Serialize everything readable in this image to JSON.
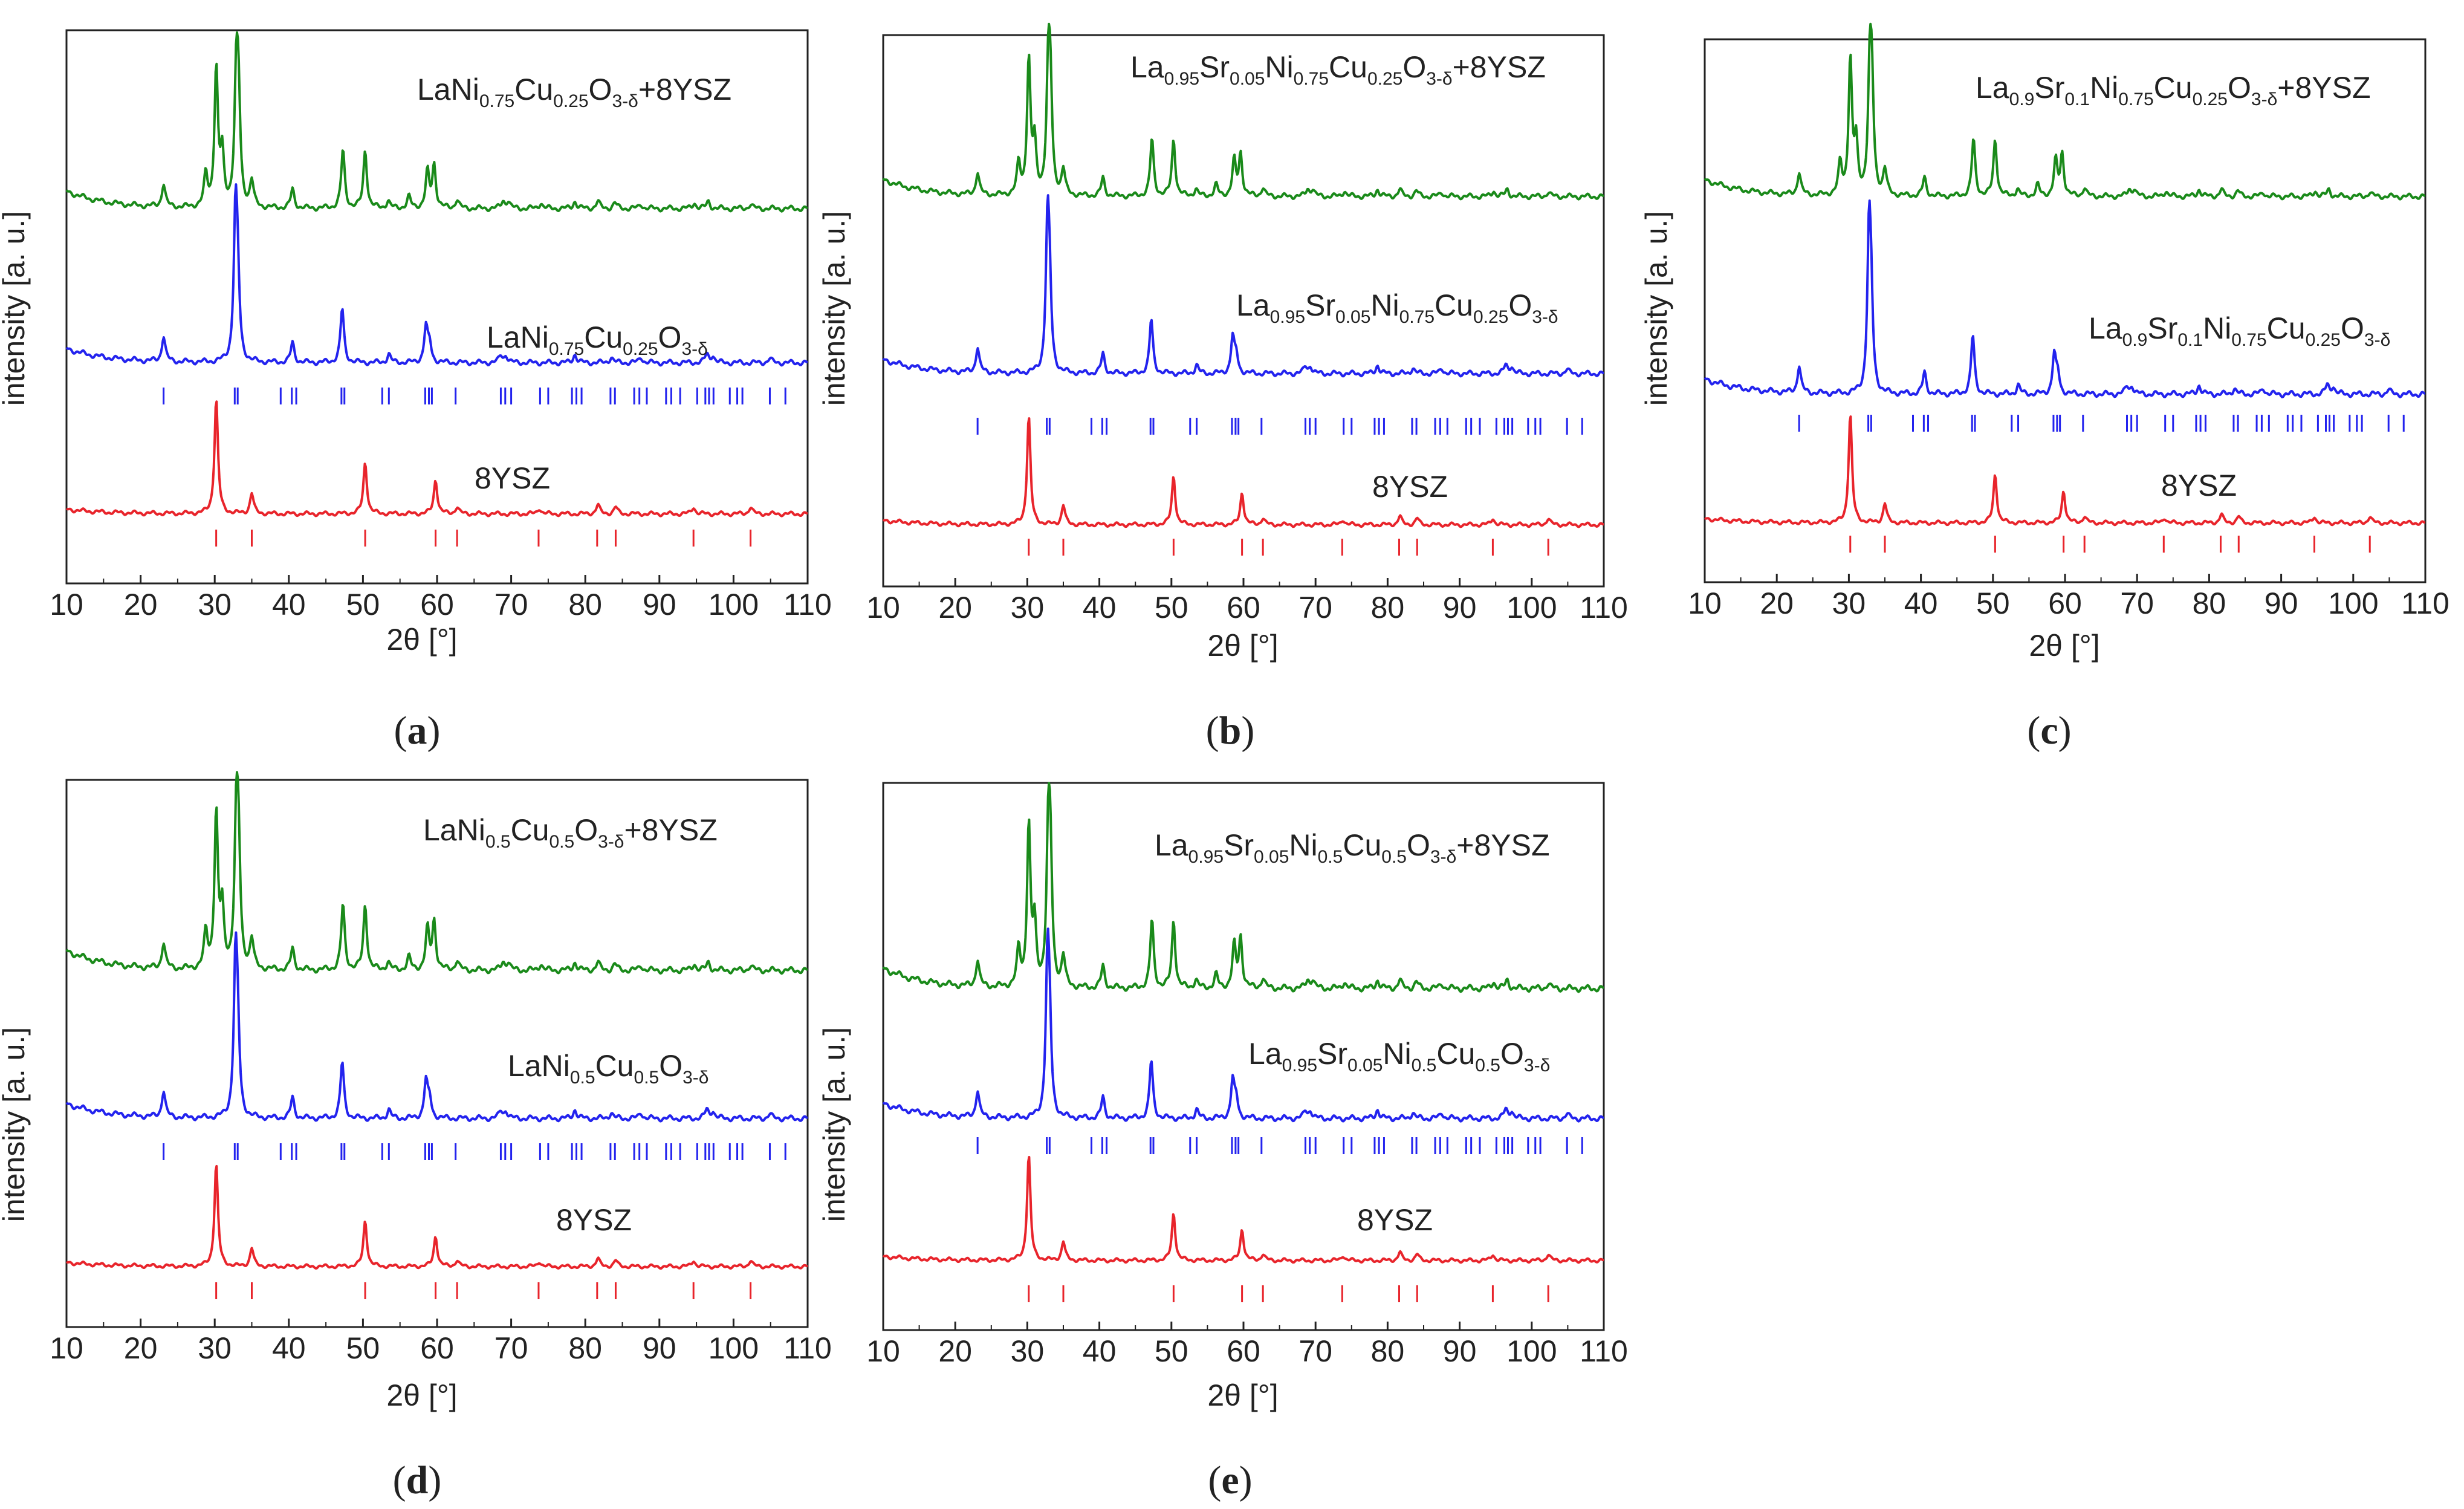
{
  "colors": {
    "composite": "#1a8a1a",
    "phase": "#2323ee",
    "ysz": "#e8242b",
    "axis": "#222222"
  },
  "chart_data": [
    {
      "type": "line",
      "panel_label": "(a)",
      "panel_letter": "a",
      "xlabel": "2θ [°]",
      "ylabel": "intensity [a. u.]",
      "xlim": [
        10,
        110
      ],
      "xticks": [
        "10",
        "20",
        "30",
        "40",
        "50",
        "60",
        "70",
        "80",
        "90",
        "100",
        "110"
      ],
      "series": [
        {
          "name": "composite",
          "label_parts": [
            [
              "LaNi",
              ""
            ],
            [
              "0.75",
              "sub"
            ],
            [
              "Cu",
              ""
            ],
            [
              "0.25",
              "sub"
            ],
            [
              "O",
              ""
            ],
            [
              "3-δ",
              "sub"
            ],
            [
              "+8YSZ",
              ""
            ]
          ]
        },
        {
          "name": "phase",
          "label_parts": [
            [
              "LaNi",
              ""
            ],
            [
              "0.75",
              "sub"
            ],
            [
              "Cu",
              ""
            ],
            [
              "0.25",
              "sub"
            ],
            [
              "O",
              ""
            ],
            [
              "3-δ",
              "sub"
            ]
          ]
        },
        {
          "name": "ysz",
          "label_parts": [
            [
              "8YSZ",
              ""
            ]
          ]
        }
      ]
    },
    {
      "type": "line",
      "panel_label": "(b)",
      "panel_letter": "b",
      "xlabel": "2θ [°]",
      "ylabel": "intensity [a. u.]",
      "xlim": [
        10,
        110
      ],
      "xticks": [
        "10",
        "20",
        "30",
        "40",
        "50",
        "60",
        "70",
        "80",
        "90",
        "100",
        "110"
      ],
      "series": [
        {
          "name": "composite",
          "label_parts": [
            [
              "La",
              ""
            ],
            [
              "0.95",
              "sub"
            ],
            [
              "Sr",
              ""
            ],
            [
              "0.05",
              "sub"
            ],
            [
              "Ni",
              ""
            ],
            [
              "0.75",
              "sub"
            ],
            [
              "Cu",
              ""
            ],
            [
              "0.25",
              "sub"
            ],
            [
              "O",
              ""
            ],
            [
              "3-δ",
              "sub"
            ],
            [
              "+8YSZ",
              ""
            ]
          ]
        },
        {
          "name": "phase",
          "label_parts": [
            [
              "La",
              ""
            ],
            [
              "0.95",
              "sub"
            ],
            [
              "Sr",
              ""
            ],
            [
              "0.05",
              "sub"
            ],
            [
              "Ni",
              ""
            ],
            [
              "0.75",
              "sub"
            ],
            [
              "Cu",
              ""
            ],
            [
              "0.25",
              "sub"
            ],
            [
              "O",
              ""
            ],
            [
              "3-δ",
              "sub"
            ]
          ]
        },
        {
          "name": "ysz",
          "label_parts": [
            [
              "8YSZ",
              ""
            ]
          ]
        }
      ]
    },
    {
      "type": "line",
      "panel_label": "(c)",
      "panel_letter": "c",
      "xlabel": "2θ [°]",
      "ylabel": "intensity [a. u.]",
      "xlim": [
        10,
        110
      ],
      "xticks": [
        "10",
        "20",
        "30",
        "40",
        "50",
        "60",
        "70",
        "80",
        "90",
        "100",
        "110"
      ],
      "series": [
        {
          "name": "composite",
          "label_parts": [
            [
              "La",
              ""
            ],
            [
              "0.9",
              "sub"
            ],
            [
              "Sr",
              ""
            ],
            [
              "0.1",
              "sub"
            ],
            [
              "Ni",
              ""
            ],
            [
              "0.75",
              "sub"
            ],
            [
              "Cu",
              ""
            ],
            [
              "0.25",
              "sub"
            ],
            [
              "O",
              ""
            ],
            [
              "3-δ",
              "sub"
            ],
            [
              "+8YSZ",
              ""
            ]
          ]
        },
        {
          "name": "phase",
          "label_parts": [
            [
              "La",
              ""
            ],
            [
              "0.9",
              "sub"
            ],
            [
              "Sr",
              ""
            ],
            [
              "0.1",
              "sub"
            ],
            [
              "Ni",
              ""
            ],
            [
              "0.75",
              "sub"
            ],
            [
              "Cu",
              ""
            ],
            [
              "0.25",
              "sub"
            ],
            [
              "O",
              ""
            ],
            [
              "3-δ",
              "sub"
            ]
          ]
        },
        {
          "name": "ysz",
          "label_parts": [
            [
              "8YSZ",
              ""
            ]
          ]
        }
      ]
    },
    {
      "type": "line",
      "panel_label": "(d)",
      "panel_letter": "d",
      "xlabel": "2θ [°]",
      "ylabel": "intensity [a. u.]",
      "xlim": [
        10,
        110
      ],
      "xticks": [
        "10",
        "20",
        "30",
        "40",
        "50",
        "60",
        "70",
        "80",
        "90",
        "100",
        "110"
      ],
      "series": [
        {
          "name": "composite",
          "label_parts": [
            [
              "LaNi",
              ""
            ],
            [
              "0.5",
              "sub"
            ],
            [
              "Cu",
              ""
            ],
            [
              "0.5",
              "sub"
            ],
            [
              "O",
              ""
            ],
            [
              "3-δ",
              "sub"
            ],
            [
              "+8YSZ",
              ""
            ]
          ]
        },
        {
          "name": "phase",
          "label_parts": [
            [
              "LaNi",
              ""
            ],
            [
              "0.5",
              "sub"
            ],
            [
              "Cu",
              ""
            ],
            [
              "0.5",
              "sub"
            ],
            [
              "O",
              ""
            ],
            [
              "3-δ",
              "sub"
            ]
          ]
        },
        {
          "name": "ysz",
          "label_parts": [
            [
              "8YSZ",
              ""
            ]
          ]
        }
      ]
    },
    {
      "type": "line",
      "panel_label": "(e)",
      "panel_letter": "e",
      "xlabel": "2θ [°]",
      "ylabel": "intensity [a. u.]",
      "xlim": [
        10,
        110
      ],
      "xticks": [
        "10",
        "20",
        "30",
        "40",
        "50",
        "60",
        "70",
        "80",
        "90",
        "100",
        "110"
      ],
      "series": [
        {
          "name": "composite",
          "label_parts": [
            [
              "La",
              ""
            ],
            [
              "0.95",
              "sub"
            ],
            [
              "Sr",
              ""
            ],
            [
              "0.05",
              "sub"
            ],
            [
              "Ni",
              ""
            ],
            [
              "0.5",
              "sub"
            ],
            [
              "Cu",
              ""
            ],
            [
              "0.5",
              "sub"
            ],
            [
              "O",
              ""
            ],
            [
              "3-δ",
              "sub"
            ],
            [
              "+8YSZ",
              ""
            ]
          ]
        },
        {
          "name": "phase",
          "label_parts": [
            [
              "La",
              ""
            ],
            [
              "0.95",
              "sub"
            ],
            [
              "Sr",
              ""
            ],
            [
              "0.05",
              "sub"
            ],
            [
              "Ni",
              ""
            ],
            [
              "0.5",
              "sub"
            ],
            [
              "Cu",
              ""
            ],
            [
              "0.5",
              "sub"
            ],
            [
              "O",
              ""
            ],
            [
              "3-δ",
              "sub"
            ]
          ]
        },
        {
          "name": "ysz",
          "label_parts": [
            [
              "8YSZ",
              ""
            ]
          ]
        }
      ]
    }
  ],
  "ysz_reflections": [
    30.2,
    35.0,
    50.3,
    59.8,
    62.7,
    73.7,
    81.6,
    84.1,
    94.6,
    102.3
  ],
  "perovskite_reflections": [
    23.1,
    32.7,
    33.1,
    38.9,
    40.4,
    41.0,
    47.1,
    47.5,
    52.6,
    53.5,
    58.4,
    58.9,
    59.3,
    62.5,
    68.6,
    69.2,
    70.0,
    73.9,
    75.0,
    78.2,
    78.8,
    79.5,
    83.4,
    84.0,
    86.6,
    87.3,
    88.3,
    90.9,
    91.6,
    92.8,
    95.1,
    96.2,
    96.7,
    97.3,
    99.5,
    100.5,
    101.2,
    104.9,
    107.0
  ],
  "composite_peaks": [
    [
      23.1,
      0.16
    ],
    [
      28.8,
      0.22
    ],
    [
      30.2,
      0.95
    ],
    [
      31.0,
      0.35
    ],
    [
      32.9,
      0.8
    ],
    [
      33.2,
      0.7
    ],
    [
      35.0,
      0.18
    ],
    [
      40.5,
      0.13
    ],
    [
      47.3,
      0.4
    ],
    [
      50.3,
      0.4
    ],
    [
      53.4,
      0.05
    ],
    [
      56.2,
      0.08
    ],
    [
      58.7,
      0.25
    ],
    [
      59.6,
      0.3
    ],
    [
      62.7,
      0.06
    ],
    [
      68.9,
      0.05
    ],
    [
      69.6,
      0.05
    ],
    [
      74.0,
      0.04
    ],
    [
      78.6,
      0.05
    ],
    [
      81.7,
      0.05
    ],
    [
      84.0,
      0.04
    ],
    [
      87.5,
      0.03
    ],
    [
      94.7,
      0.04
    ],
    [
      96.6,
      0.05
    ],
    [
      102.3,
      0.03
    ]
  ],
  "phase_peaks": [
    [
      23.1,
      0.18
    ],
    [
      32.8,
      1.0
    ],
    [
      33.1,
      0.5
    ],
    [
      40.5,
      0.14
    ],
    [
      47.2,
      0.38
    ],
    [
      53.5,
      0.06
    ],
    [
      58.5,
      0.25
    ],
    [
      59.0,
      0.12
    ],
    [
      68.6,
      0.05
    ],
    [
      69.3,
      0.05
    ],
    [
      78.6,
      0.06
    ],
    [
      83.5,
      0.04
    ],
    [
      87.5,
      0.04
    ],
    [
      96.4,
      0.06
    ],
    [
      97.2,
      0.05
    ],
    [
      104.9,
      0.03
    ]
  ],
  "ysz_peaks": [
    [
      30.2,
      1.0
    ],
    [
      35.0,
      0.18
    ],
    [
      50.3,
      0.45
    ],
    [
      59.8,
      0.3
    ],
    [
      62.7,
      0.06
    ],
    [
      73.8,
      0.05
    ],
    [
      81.7,
      0.08
    ],
    [
      84.1,
      0.06
    ],
    [
      94.6,
      0.06
    ],
    [
      102.3,
      0.06
    ]
  ]
}
